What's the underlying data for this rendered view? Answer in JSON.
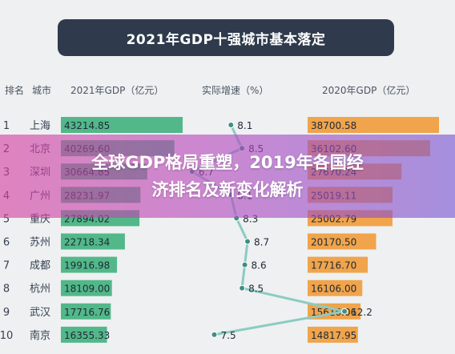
{
  "header": {
    "title": "2021年GDP十强城市基本落定"
  },
  "columns": {
    "rank": "排名",
    "city": "城市",
    "gdp2021": "2021年GDP（亿元）",
    "growth": "实际增速（%）",
    "gdp2020": "2020年GDP（亿元）"
  },
  "overlay": {
    "line1": "全球GDP格局重塑，2019年各国经",
    "line2": "济排名及新变化解析"
  },
  "colors": {
    "title_bg": "#2f3b4c",
    "bar2021": "#52b889",
    "bar2020": "#f0a44b",
    "growth_line": "#8ccbc2",
    "growth_dot": "#3f8f84",
    "overlay": "#b84ab8"
  },
  "chart_data": {
    "type": "table",
    "ranks": [
      "1",
      "2",
      "3",
      "4",
      "5",
      "6",
      "7",
      "8",
      "9",
      "10"
    ],
    "cities": [
      "上海",
      "北京",
      "深圳",
      "广州",
      "重庆",
      "苏州",
      "成都",
      "杭州",
      "武汉",
      "南京"
    ],
    "gdp2021": [
      43214.85,
      40269.6,
      30664.85,
      28231.97,
      27894.02,
      22718.34,
      19916.98,
      18109.0,
      17716.76,
      16355.33
    ],
    "gdp2021_labels": [
      "43214.85",
      "40269.60",
      "30664.85",
      "28231.97",
      "27894.02",
      "22718.34",
      "19916.98",
      "18109.00",
      "17716.76",
      "16355.33"
    ],
    "growth": [
      8.1,
      8.5,
      6.7,
      8.1,
      8.3,
      8.7,
      8.6,
      8.5,
      12.2,
      7.5
    ],
    "growth_labels": [
      "8.1",
      "8.5",
      "6.7",
      "8.1",
      "8.3",
      "8.7",
      "8.6",
      "8.5",
      "12.2",
      "7.5"
    ],
    "gdp2020": [
      38700.58,
      36102.6,
      27670.24,
      25019.11,
      25002.79,
      20170.5,
      17716.7,
      16106.0,
      15616.06,
      14817.95
    ],
    "gdp2020_labels": [
      "38700.58",
      "36102.60",
      "27670.24",
      "25019.11",
      "25002.79",
      "20170.50",
      "17716.70",
      "16106.00",
      "15616.06",
      "14817.95"
    ]
  }
}
